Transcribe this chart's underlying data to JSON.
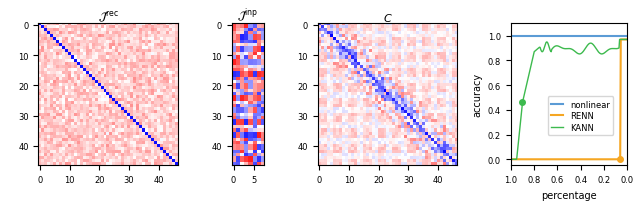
{
  "fig_width": 6.4,
  "fig_height": 2.03,
  "dpi": 100,
  "panel1": {
    "title": "$\\mathcal{J}^\\mathrm{rec}$",
    "size": 47,
    "vmin": -1,
    "vmax": 1,
    "xticks": [
      0,
      10,
      20,
      30,
      40
    ],
    "yticks": [
      0,
      10,
      20,
      30,
      40
    ]
  },
  "panel2": {
    "title": "$\\mathcal{J}^\\mathrm{inp}$",
    "rows": 47,
    "cols": 8,
    "vmin": -1,
    "vmax": 1,
    "xticks": [
      0,
      5
    ],
    "yticks": [
      0,
      10,
      20,
      30,
      40
    ]
  },
  "panel3": {
    "title": "$C$",
    "size": 47,
    "vmin": -1,
    "vmax": 1,
    "xticks": [
      0,
      10,
      20,
      30,
      40
    ],
    "yticks": [
      0,
      10,
      20,
      30,
      40
    ]
  },
  "panel4": {
    "xlabel": "percentage",
    "ylabel": "accuracy",
    "nonlinear_color": "#5b9bd5",
    "renn_color": "#f5a623",
    "kann_color": "#3dba4e",
    "legend_labels": [
      "nonlinear",
      "RENN",
      "KANN"
    ],
    "xticks": [
      1.0,
      0.8,
      0.6,
      0.4,
      0.2,
      0.0
    ],
    "yticks": [
      0.0,
      0.2,
      0.4,
      0.6,
      0.8,
      1.0
    ]
  }
}
